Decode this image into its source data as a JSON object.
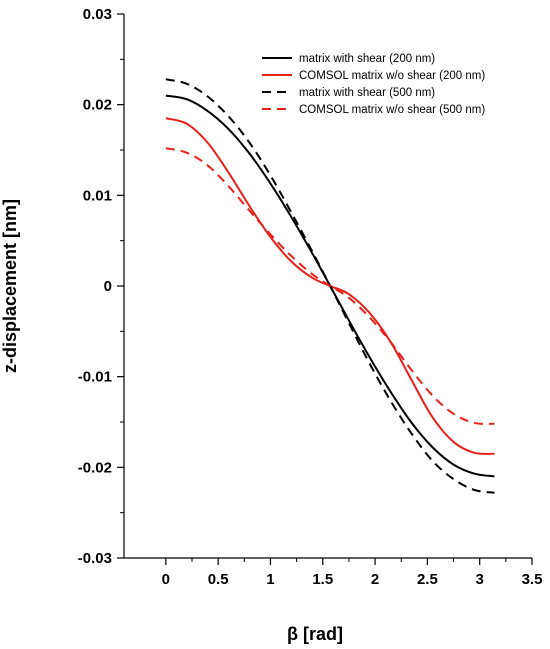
{
  "chart_data": {
    "type": "line",
    "title": "",
    "xlabel": "β [rad]",
    "ylabel": "z-displacement [nm]",
    "xlim": [
      -0.4,
      3.5
    ],
    "ylim": [
      -0.03,
      0.03
    ],
    "xticks": [
      0,
      0.5,
      1,
      1.5,
      2,
      2.5,
      3,
      3.5
    ],
    "xtick_labels": [
      "0",
      "0.5",
      "1",
      "1.5",
      "2",
      "2.5",
      "3",
      "3.5"
    ],
    "yticks": [
      -0.03,
      -0.02,
      -0.01,
      0,
      0.01,
      0.02,
      0.03
    ],
    "ytick_labels": [
      "-0.03",
      "-0.02",
      "-0.01",
      "0",
      "0.01",
      "0.02",
      "0.03"
    ],
    "grid": false,
    "legend_position": "top-right",
    "series": [
      {
        "name": "matrix with shear (200 nm)",
        "color": "#000000",
        "dash": "solid",
        "x": [
          0,
          0.2,
          0.4,
          0.6,
          0.8,
          1.0,
          1.2,
          1.4,
          1.5708,
          1.75,
          1.95,
          2.15,
          2.35,
          2.55,
          2.75,
          2.95,
          3.1416
        ],
        "y": [
          0.021,
          0.0206,
          0.0193,
          0.0173,
          0.0146,
          0.0113,
          0.0076,
          0.0036,
          0.0,
          -0.0038,
          -0.0079,
          -0.0117,
          -0.0151,
          -0.0178,
          -0.0197,
          -0.0207,
          -0.021
        ]
      },
      {
        "name": "COMSOL matrix w/o shear (200 nm)",
        "color": "#e8211a",
        "dash": "solid",
        "x": [
          0,
          0.2,
          0.4,
          0.6,
          0.8,
          1.0,
          1.2,
          1.4,
          1.5708,
          1.75,
          1.95,
          2.15,
          2.35,
          2.55,
          2.75,
          2.95,
          3.1416
        ],
        "y": [
          0.0185,
          0.0179,
          0.0158,
          0.0125,
          0.0088,
          0.0054,
          0.0027,
          0.0009,
          0.0,
          -0.0009,
          -0.003,
          -0.0062,
          -0.0104,
          -0.0145,
          -0.0172,
          -0.0184,
          -0.0185
        ]
      },
      {
        "name": "matrix with shear (500 nm)",
        "color": "#000000",
        "dash": "dashed",
        "x": [
          0,
          0.2,
          0.4,
          0.6,
          0.8,
          1.0,
          1.2,
          1.4,
          1.5708,
          1.75,
          1.95,
          2.15,
          2.35,
          2.55,
          2.75,
          2.95,
          3.1416
        ],
        "y": [
          0.0228,
          0.0223,
          0.0209,
          0.0187,
          0.0158,
          0.0122,
          0.0081,
          0.0038,
          0.0,
          -0.0041,
          -0.0086,
          -0.0127,
          -0.0163,
          -0.0193,
          -0.0213,
          -0.0225,
          -0.0228
        ]
      },
      {
        "name": "COMSOL matrix w/o shear (500 nm)",
        "color": "#e8211a",
        "dash": "dashed",
        "x": [
          0,
          0.2,
          0.4,
          0.6,
          0.8,
          1.0,
          1.2,
          1.4,
          1.5708,
          1.75,
          1.95,
          2.15,
          2.35,
          2.55,
          2.75,
          2.95,
          3.1416
        ],
        "y": [
          0.0152,
          0.0147,
          0.0133,
          0.011,
          0.0083,
          0.0057,
          0.0033,
          0.0013,
          0.0,
          -0.0013,
          -0.0035,
          -0.0062,
          -0.0093,
          -0.0121,
          -0.0141,
          -0.0151,
          -0.0152
        ]
      }
    ]
  }
}
